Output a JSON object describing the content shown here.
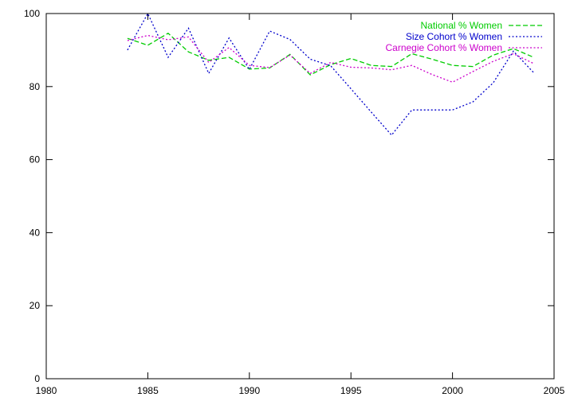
{
  "chart_data": {
    "type": "line",
    "xlim": [
      1980,
      2005
    ],
    "ylim": [
      0,
      100
    ],
    "xticks": [
      1980,
      1985,
      1990,
      1995,
      2000,
      2005
    ],
    "yticks": [
      0,
      20,
      40,
      60,
      80,
      100
    ],
    "grid": false,
    "legend_position": "top-right",
    "series": [
      {
        "name": "National % Women",
        "color": "#00cc00",
        "dash": "dashed",
        "x": [
          1984,
          1985,
          1986,
          1987,
          1988,
          1989,
          1990,
          1991,
          1992,
          1993,
          1994,
          1995,
          1996,
          1997,
          1998,
          1999,
          2000,
          2001,
          2002,
          2003,
          2004
        ],
        "y": [
          93.2,
          91.3,
          94.6,
          89.5,
          87.2,
          88.0,
          84.8,
          85.1,
          88.8,
          83.2,
          86.0,
          87.7,
          85.8,
          85.5,
          89.0,
          87.5,
          85.8,
          85.5,
          88.6,
          90.4,
          88.0
        ]
      },
      {
        "name": "Size Cohort % Women",
        "color": "#0000cc",
        "dash": "dotted",
        "x": [
          1984,
          1985,
          1986,
          1987,
          1988,
          1989,
          1990,
          1991,
          1992,
          1993,
          1994,
          1995,
          1996,
          1997,
          1998,
          1999,
          2000,
          2001,
          2002,
          2003,
          2004
        ],
        "y": [
          90.0,
          100.0,
          88.0,
          96.0,
          83.6,
          93.3,
          84.7,
          95.2,
          92.9,
          87.5,
          85.7,
          79.4,
          73.0,
          66.7,
          73.6,
          73.6,
          73.6,
          75.8,
          81.0,
          89.7,
          83.8
        ]
      },
      {
        "name": "Carnegie Cohort % Women",
        "color": "#cc00cc",
        "dash": "dotted",
        "x": [
          1984,
          1985,
          1986,
          1987,
          1988,
          1989,
          1990,
          1991,
          1992,
          1993,
          1994,
          1995,
          1996,
          1997,
          1998,
          1999,
          2000,
          2001,
          2002,
          2003,
          2004
        ],
        "y": [
          92.6,
          94.0,
          92.8,
          93.6,
          86.6,
          90.7,
          85.8,
          85.2,
          88.6,
          83.6,
          86.6,
          85.3,
          85.1,
          84.6,
          85.8,
          83.3,
          81.2,
          84.1,
          86.9,
          89.0,
          86.3
        ]
      }
    ]
  }
}
